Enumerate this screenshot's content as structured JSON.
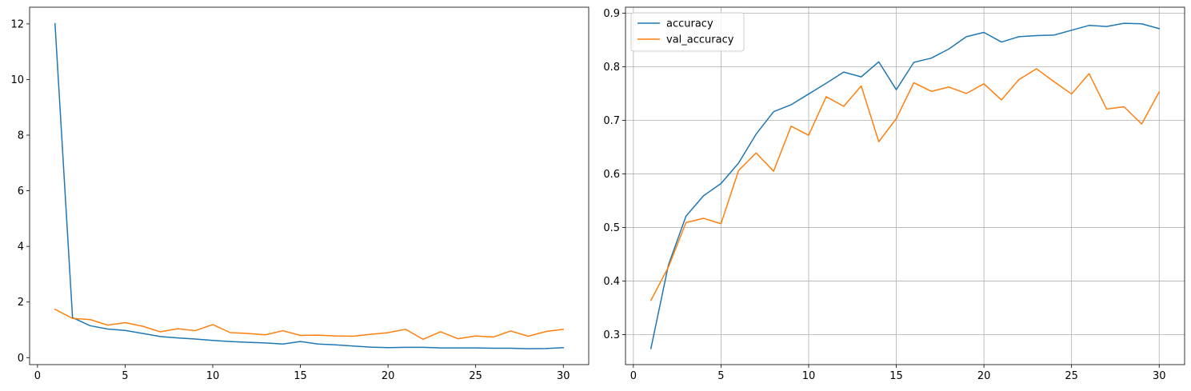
{
  "chart_data": [
    {
      "type": "line",
      "title": "",
      "xlabel": "",
      "ylabel": "",
      "xlim": [
        -0.45,
        31.45
      ],
      "ylim": [
        -0.25,
        12.6
      ],
      "xticks": [
        0,
        5,
        10,
        15,
        20,
        25,
        30
      ],
      "yticks": [
        0,
        2,
        4,
        6,
        8,
        10,
        12
      ],
      "grid": false,
      "legend": "none",
      "x": [
        1,
        2,
        3,
        4,
        5,
        6,
        7,
        8,
        9,
        10,
        11,
        12,
        13,
        14,
        15,
        16,
        17,
        18,
        19,
        20,
        21,
        22,
        23,
        24,
        25,
        26,
        27,
        28,
        29,
        30
      ],
      "series": [
        {
          "color": "#1f77b4",
          "values": [
            12.01,
            1.44,
            1.15,
            1.03,
            0.98,
            0.87,
            0.76,
            0.71,
            0.67,
            0.62,
            0.58,
            0.55,
            0.53,
            0.49,
            0.58,
            0.49,
            0.46,
            0.42,
            0.38,
            0.36,
            0.37,
            0.37,
            0.35,
            0.35,
            0.35,
            0.34,
            0.34,
            0.32,
            0.33,
            0.36
          ]
        },
        {
          "color": "#ff7f0e",
          "values": [
            1.74,
            1.41,
            1.37,
            1.17,
            1.26,
            1.13,
            0.93,
            1.04,
            0.97,
            1.19,
            0.9,
            0.87,
            0.82,
            0.97,
            0.8,
            0.81,
            0.78,
            0.77,
            0.84,
            0.9,
            1.02,
            0.66,
            0.93,
            0.68,
            0.78,
            0.74,
            0.96,
            0.77,
            0.94,
            1.02
          ]
        }
      ]
    },
    {
      "type": "line",
      "title": "",
      "xlabel": "",
      "ylabel": "",
      "xlim": [
        -0.45,
        31.45
      ],
      "ylim": [
        0.244,
        0.911
      ],
      "xticks": [
        0,
        5,
        10,
        15,
        20,
        25,
        30
      ],
      "yticks": [
        0.3,
        0.4,
        0.5,
        0.6,
        0.7,
        0.8,
        0.9
      ],
      "grid": true,
      "legend": "top-left",
      "x": [
        1,
        2,
        3,
        4,
        5,
        6,
        7,
        8,
        9,
        10,
        11,
        12,
        13,
        14,
        15,
        16,
        17,
        18,
        19,
        20,
        21,
        22,
        23,
        24,
        25,
        26,
        27,
        28,
        29,
        30
      ],
      "series": [
        {
          "name": "accuracy",
          "color": "#1f77b4",
          "values": [
            0.274,
            0.43,
            0.521,
            0.559,
            0.582,
            0.62,
            0.674,
            0.716,
            0.729,
            0.749,
            0.769,
            0.79,
            0.781,
            0.809,
            0.757,
            0.808,
            0.816,
            0.833,
            0.856,
            0.864,
            0.846,
            0.856,
            0.858,
            0.859,
            0.868,
            0.877,
            0.875,
            0.881,
            0.88,
            0.871
          ]
        },
        {
          "name": "val_accuracy",
          "color": "#ff7f0e",
          "values": [
            0.364,
            0.426,
            0.509,
            0.517,
            0.507,
            0.606,
            0.639,
            0.605,
            0.689,
            0.672,
            0.744,
            0.726,
            0.764,
            0.66,
            0.703,
            0.77,
            0.754,
            0.762,
            0.75,
            0.768,
            0.738,
            0.776,
            0.796,
            0.772,
            0.749,
            0.787,
            0.721,
            0.725,
            0.693,
            0.753
          ]
        }
      ]
    }
  ]
}
